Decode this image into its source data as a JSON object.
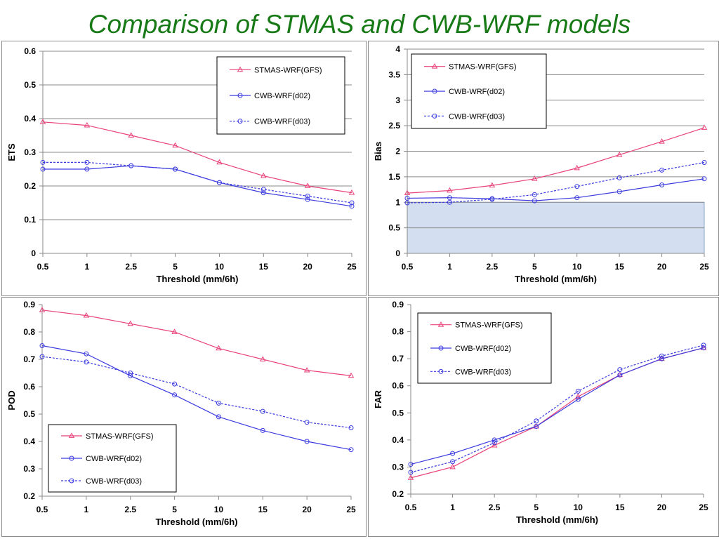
{
  "title": "Comparison of STMAS and CWB-WRF models",
  "colors": {
    "stmas": "#e8427a",
    "cwb": "#3b3be0",
    "shade": "#d3dff0"
  },
  "chart_data": [
    {
      "id": "ets",
      "type": "line",
      "title": "",
      "xlabel": "Threshold (mm/6h)",
      "ylabel": "ETS",
      "categories": [
        "0.5",
        "1",
        "2.5",
        "5",
        "10",
        "15",
        "20",
        "25"
      ],
      "ylim": [
        0,
        0.6
      ],
      "yticks": [
        "0",
        "0.1",
        "0.2",
        "0.3",
        "0.4",
        "0.5",
        "0.6"
      ],
      "grid": true,
      "legend_position": "top-right",
      "series": [
        {
          "name": "STMAS-WRF(GFS)",
          "values": [
            0.39,
            0.38,
            0.35,
            0.32,
            0.27,
            0.23,
            0.2,
            0.18
          ]
        },
        {
          "name": "CWB-WRF(d02)",
          "values": [
            0.25,
            0.25,
            0.26,
            0.25,
            0.21,
            0.18,
            0.16,
            0.14
          ]
        },
        {
          "name": "CWB-WRF(d03)",
          "values": [
            0.27,
            0.27,
            0.26,
            0.25,
            0.21,
            0.19,
            0.17,
            0.15
          ]
        }
      ]
    },
    {
      "id": "bias",
      "type": "line",
      "title": "",
      "xlabel": "Threshold (mm/6h)",
      "ylabel": "Bias",
      "categories": [
        "0.5",
        "1",
        "2.5",
        "5",
        "10",
        "15",
        "20",
        "25"
      ],
      "ylim": [
        0,
        4
      ],
      "yticks": [
        "0",
        "0.5",
        "1",
        "1.5",
        "2",
        "2.5",
        "3",
        "3.5",
        "4"
      ],
      "grid": true,
      "legend_position": "top-left",
      "shaded_band": [
        0,
        1
      ],
      "series": [
        {
          "name": "STMAS-WRF(GFS)",
          "values": [
            1.18,
            1.23,
            1.33,
            1.46,
            1.67,
            1.93,
            2.19,
            2.46
          ]
        },
        {
          "name": "CWB-WRF(d02)",
          "values": [
            1.08,
            1.09,
            1.07,
            1.03,
            1.09,
            1.21,
            1.34,
            1.46
          ]
        },
        {
          "name": "CWB-WRF(d03)",
          "values": [
            0.99,
            1.0,
            1.06,
            1.15,
            1.31,
            1.48,
            1.63,
            1.78
          ]
        }
      ]
    },
    {
      "id": "pod",
      "type": "line",
      "title": "",
      "xlabel": "Threshold (mm/6h)",
      "ylabel": "POD",
      "categories": [
        "0.5",
        "1",
        "2.5",
        "5",
        "10",
        "15",
        "20",
        "25"
      ],
      "ylim": [
        0.2,
        0.9
      ],
      "yticks": [
        "0.2",
        "0.3",
        "0.4",
        "0.5",
        "0.6",
        "0.7",
        "0.8",
        "0.9"
      ],
      "grid": false,
      "legend_position": "bottom-left",
      "series": [
        {
          "name": "STMAS-WRF(GFS)",
          "values": [
            0.88,
            0.86,
            0.83,
            0.8,
            0.74,
            0.7,
            0.66,
            0.64
          ]
        },
        {
          "name": "CWB-WRF(d02)",
          "values": [
            0.75,
            0.72,
            0.64,
            0.57,
            0.49,
            0.44,
            0.4,
            0.37
          ]
        },
        {
          "name": "CWB-WRF(d03)",
          "values": [
            0.71,
            0.69,
            0.65,
            0.61,
            0.54,
            0.51,
            0.47,
            0.45
          ]
        }
      ]
    },
    {
      "id": "far",
      "type": "line",
      "title": "",
      "xlabel": "Threshold (mm/6h)",
      "ylabel": "FAR",
      "categories": [
        "0.5",
        "1",
        "2.5",
        "5",
        "10",
        "15",
        "20",
        "25"
      ],
      "ylim": [
        0.2,
        0.9
      ],
      "yticks": [
        "0.2",
        "0.3",
        "0.4",
        "0.5",
        "0.6",
        "0.7",
        "0.8",
        "0.9"
      ],
      "grid": false,
      "legend_position": "top-left",
      "series": [
        {
          "name": "STMAS-WRF(GFS)",
          "values": [
            0.26,
            0.3,
            0.38,
            0.45,
            0.56,
            0.64,
            0.7,
            0.74
          ]
        },
        {
          "name": "CWB-WRF(d02)",
          "values": [
            0.31,
            0.35,
            0.4,
            0.45,
            0.55,
            0.64,
            0.7,
            0.74
          ]
        },
        {
          "name": "CWB-WRF(d03)",
          "values": [
            0.28,
            0.32,
            0.39,
            0.47,
            0.58,
            0.66,
            0.71,
            0.75
          ]
        }
      ]
    }
  ]
}
